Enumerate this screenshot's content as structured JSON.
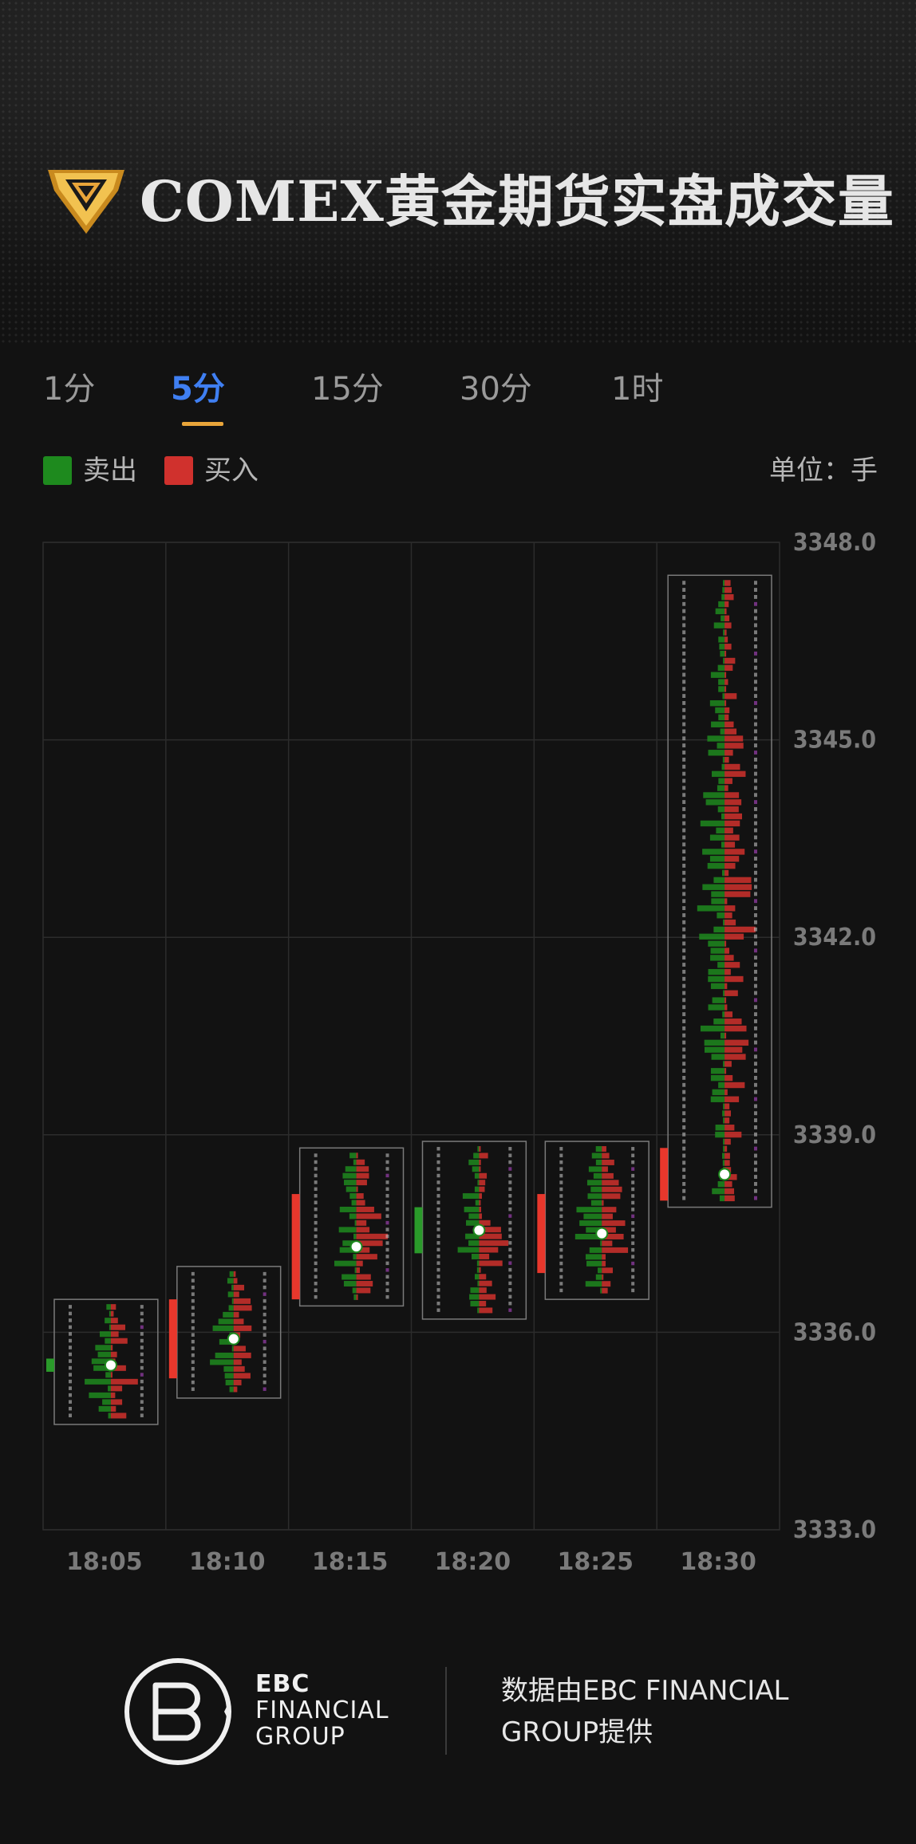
{
  "header": {
    "title": "COMEX黄金期货实盘成交量"
  },
  "tabs": [
    {
      "label": "1分",
      "active": false
    },
    {
      "label": "5分",
      "active": true
    },
    {
      "label": "15分",
      "active": false
    },
    {
      "label": "30分",
      "active": false
    },
    {
      "label": "1时",
      "active": false
    }
  ],
  "legend": {
    "sell_label": "卖出",
    "buy_label": "买入",
    "sell_color": "#1e8a1e",
    "buy_color": "#d0312d",
    "unit_label": "单位：手"
  },
  "chart_data": {
    "type": "candlestick-footprint",
    "categories": [
      "18:05",
      "18:10",
      "18:15",
      "18:20",
      "18:25",
      "18:30"
    ],
    "y_ticks": [
      "3348.0",
      "3345.0",
      "3342.0",
      "3339.0",
      "3336.0",
      "3333.0"
    ],
    "ylim": [
      3333.0,
      3348.0
    ],
    "grid": true,
    "candles": [
      {
        "time": "18:05",
        "open": 3335.4,
        "close": 3335.6,
        "high": 3336.5,
        "low": 3334.6,
        "direction": "sell"
      },
      {
        "time": "18:10",
        "open": 3335.3,
        "close": 3336.5,
        "high": 3337.0,
        "low": 3335.0,
        "direction": "buy"
      },
      {
        "time": "18:15",
        "open": 3336.5,
        "close": 3338.1,
        "high": 3338.8,
        "low": 3336.4,
        "direction": "buy"
      },
      {
        "time": "18:20",
        "open": 3337.9,
        "close": 3337.2,
        "high": 3338.9,
        "low": 3336.2,
        "direction": "sell"
      },
      {
        "time": "18:25",
        "open": 3336.9,
        "close": 3338.1,
        "high": 3338.9,
        "low": 3336.5,
        "direction": "buy"
      },
      {
        "time": "18:30",
        "open": 3338.0,
        "close": 3338.8,
        "high": 3347.5,
        "low": 3337.9,
        "direction": "buy"
      }
    ]
  },
  "footer": {
    "brand_line1": "EBC",
    "brand_line2": "FINANCIAL",
    "brand_line3": "GROUP",
    "credit_line1": "数据由EBC FINANCIAL",
    "credit_line2": "GROUP提供"
  }
}
